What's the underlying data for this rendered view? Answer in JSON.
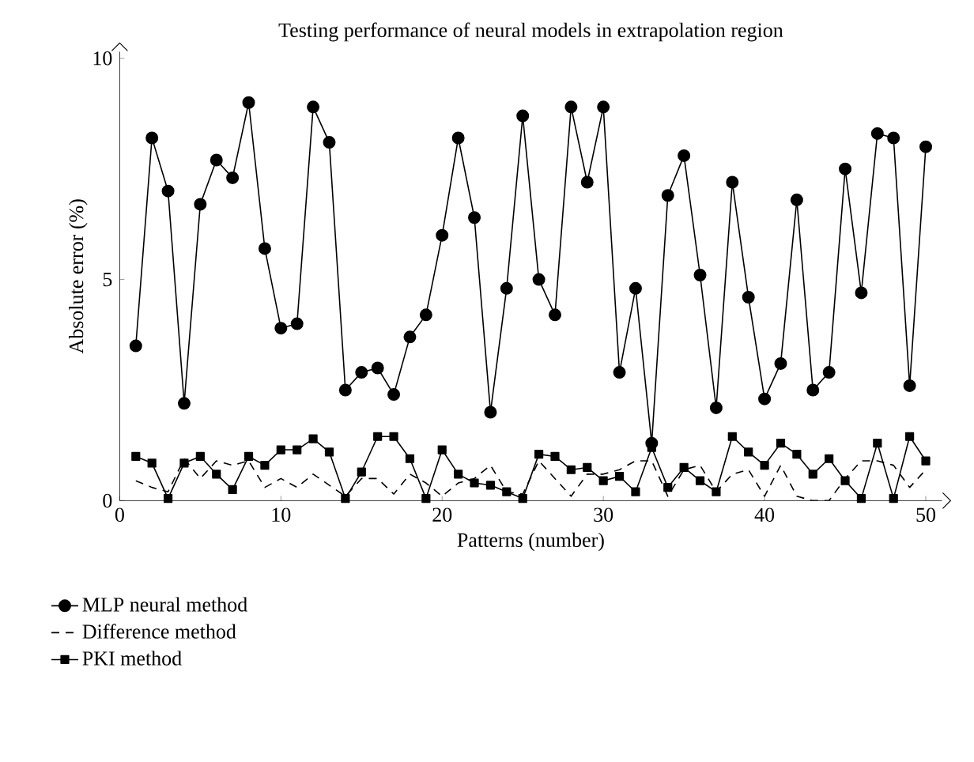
{
  "chart_data": {
    "type": "line",
    "title": "Testing performance of neural models in extrapolation region",
    "xlabel": "Patterns (number)",
    "ylabel": "Absolute error (%)",
    "x": [
      1,
      2,
      3,
      4,
      5,
      6,
      7,
      8,
      9,
      10,
      11,
      12,
      13,
      14,
      15,
      16,
      17,
      18,
      19,
      20,
      21,
      22,
      23,
      24,
      25,
      26,
      27,
      28,
      29,
      30,
      31,
      32,
      33,
      34,
      35,
      36,
      37,
      38,
      39,
      40,
      41,
      42,
      43,
      44,
      45,
      46,
      47,
      48,
      49,
      50
    ],
    "series": [
      {
        "name": "MLP neural method",
        "color": "#000000",
        "marker": "circle",
        "line_style": "solid",
        "values": [
          3.5,
          8.2,
          7.0,
          2.2,
          6.7,
          7.7,
          7.3,
          9.0,
          5.7,
          3.9,
          4.0,
          8.9,
          8.1,
          2.5,
          2.9,
          3.0,
          2.4,
          3.7,
          4.2,
          6.0,
          8.2,
          6.4,
          2.0,
          4.8,
          8.7,
          5.0,
          4.2,
          8.9,
          7.2,
          8.9,
          2.9,
          4.8,
          1.3,
          6.9,
          7.8,
          5.1,
          2.1,
          7.2,
          4.6,
          2.3,
          3.1,
          6.8,
          2.5,
          2.9,
          7.5,
          4.7,
          8.3,
          8.2,
          2.6,
          8.0
        ]
      },
      {
        "name": "Difference method",
        "color": "#000000",
        "marker": "none",
        "line_style": "dashed",
        "values": [
          0.45,
          0.3,
          0.2,
          0.95,
          0.5,
          0.9,
          0.8,
          0.9,
          0.3,
          0.5,
          0.3,
          0.6,
          0.35,
          0.1,
          0.5,
          0.5,
          0.15,
          0.6,
          0.4,
          0.1,
          0.4,
          0.5,
          0.8,
          0.2,
          0.15,
          0.9,
          0.5,
          0.1,
          0.6,
          0.6,
          0.7,
          0.9,
          0.9,
          0.1,
          0.7,
          0.8,
          0.2,
          0.6,
          0.7,
          0.1,
          0.8,
          0.1,
          0.0,
          0.0,
          0.5,
          0.9,
          0.9,
          0.8,
          0.3,
          0.7
        ]
      },
      {
        "name": "PKI method",
        "color": "#000000",
        "marker": "square",
        "line_style": "solid",
        "values": [
          1.0,
          0.85,
          0.05,
          0.85,
          1.0,
          0.6,
          0.25,
          1.0,
          0.8,
          1.15,
          1.15,
          1.4,
          1.1,
          0.05,
          0.65,
          1.45,
          1.45,
          0.95,
          0.05,
          1.15,
          0.6,
          0.4,
          0.35,
          0.2,
          0.05,
          1.05,
          1.0,
          0.7,
          0.75,
          0.45,
          0.55,
          0.2,
          1.2,
          0.3,
          0.75,
          0.45,
          0.2,
          1.45,
          1.1,
          0.8,
          1.3,
          1.05,
          0.6,
          0.95,
          0.45,
          0.05,
          1.3,
          0.05,
          1.45,
          0.9
        ]
      }
    ],
    "xlim": [
      0,
      51
    ],
    "ylim": [
      0,
      10.15
    ],
    "xticks": [
      0,
      10,
      20,
      30,
      40,
      50
    ],
    "yticks": [
      0,
      5,
      10
    ],
    "grid": false,
    "legend": "bottom left"
  }
}
